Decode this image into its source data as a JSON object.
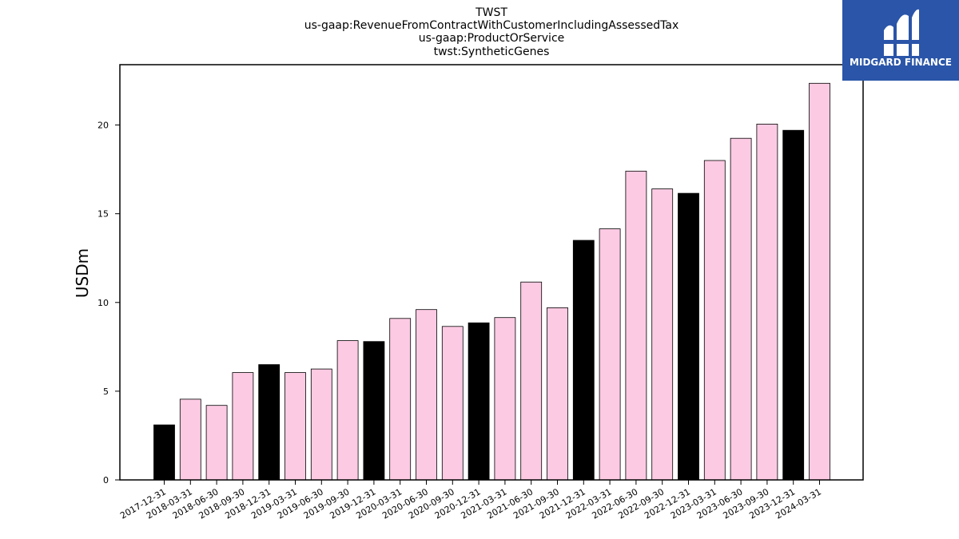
{
  "logo": {
    "text": "MIDGARD FINANCE",
    "color": "#2a55a8"
  },
  "chart_data": {
    "type": "bar",
    "title_lines": [
      "TWST",
      "us-gaap:RevenueFromContractWithCustomerIncludingAssessedTax",
      "us-gaap:ProductOrService",
      "twst:SyntheticGenes"
    ],
    "xlabel": "",
    "ylabel": "USDm",
    "ylim": [
      0,
      23.4
    ],
    "yticks": [
      0,
      5,
      10,
      15,
      20
    ],
    "grid": false,
    "colors": {
      "quarter": "#fccae3",
      "year_end": "#000000",
      "edge": "#000000"
    },
    "categories": [
      "2017-12-31",
      "2018-03-31",
      "2018-06-30",
      "2018-09-30",
      "2018-12-31",
      "2019-03-31",
      "2019-06-30",
      "2019-09-30",
      "2019-12-31",
      "2020-03-31",
      "2020-06-30",
      "2020-09-30",
      "2020-12-31",
      "2021-03-31",
      "2021-06-30",
      "2021-09-30",
      "2021-12-31",
      "2022-03-31",
      "2022-06-30",
      "2022-09-30",
      "2022-12-31",
      "2023-03-31",
      "2023-06-30",
      "2023-09-30",
      "2023-12-31",
      "2024-03-31"
    ],
    "values": [
      3.1,
      4.55,
      4.2,
      6.05,
      6.5,
      6.05,
      6.25,
      7.85,
      7.8,
      9.1,
      9.6,
      8.65,
      8.85,
      9.15,
      11.15,
      9.7,
      13.5,
      14.15,
      17.4,
      16.4,
      16.15,
      18.0,
      19.25,
      20.05,
      19.7,
      22.35
    ]
  }
}
